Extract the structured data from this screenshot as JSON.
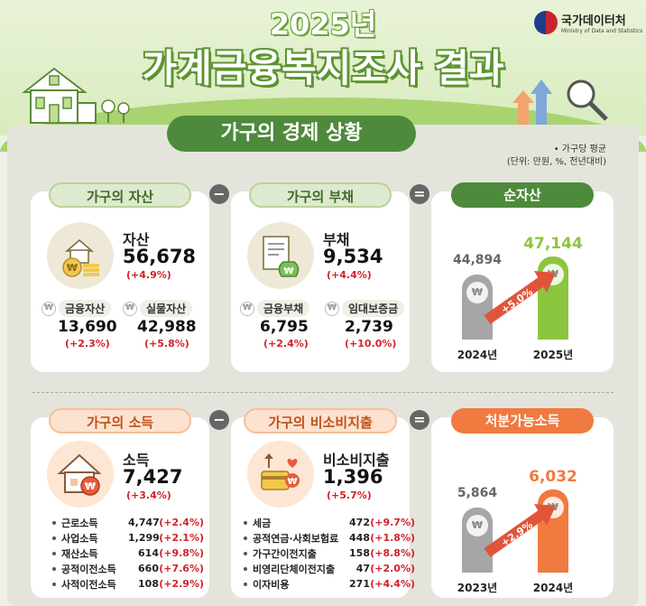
{
  "header": {
    "year": "2025년",
    "title": "가계금융복지조사 결과",
    "logo_ko": "국가데이터처",
    "logo_en": "Ministry of Data and Statistics"
  },
  "section": {
    "title": "가구의 경제 상황",
    "note1": "• 가구당 평균",
    "note2": "(단위: 만원, %, 전년대비)"
  },
  "assets": {
    "pill": "가구의 자산",
    "label": "자산",
    "value": "56,678",
    "change": "(+4.9%)",
    "sub": [
      {
        "label": "금융자산",
        "value": "13,690",
        "change": "(+2.3%)"
      },
      {
        "label": "실물자산",
        "value": "42,988",
        "change": "(+5.8%)"
      }
    ]
  },
  "debt": {
    "pill": "가구의 부채",
    "label": "부채",
    "value": "9,534",
    "change": "(+4.4%)",
    "sub": [
      {
        "label": "금융부채",
        "value": "6,795",
        "change": "(+2.4%)"
      },
      {
        "label": "임대보증금",
        "value": "2,739",
        "change": "(+10.0%)"
      }
    ]
  },
  "net": {
    "pill": "순자산",
    "growth": "+5.0%",
    "bars": [
      {
        "year": "2024년",
        "value": "44,894",
        "num": 44894,
        "color": "#a6a6a6"
      },
      {
        "year": "2025년",
        "value": "47,144",
        "num": 47144,
        "color": "#8cc63e"
      }
    ]
  },
  "income": {
    "pill": "가구의 소득",
    "label": "소득",
    "value": "7,427",
    "change": "(+3.4%)",
    "items": [
      {
        "name": "근로소득",
        "value": "4,747",
        "change": "(+2.4%)"
      },
      {
        "name": "사업소득",
        "value": "1,299",
        "change": "(+2.1%)"
      },
      {
        "name": "재산소득",
        "value": "614",
        "change": "(+9.8%)"
      },
      {
        "name": "공적이전소득",
        "value": "660",
        "change": "(+7.6%)"
      },
      {
        "name": "사적이전소득",
        "value": "108",
        "change": "(+2.9%)"
      }
    ]
  },
  "nonconsumption": {
    "pill": "가구의 비소비지출",
    "label": "비소비지출",
    "value": "1,396",
    "change": "(+5.7%)",
    "items": [
      {
        "name": "세금",
        "value": "472",
        "change": "(+9.7%)"
      },
      {
        "name": "공적연금·사회보험료",
        "value": "448",
        "change": "(+1.8%)"
      },
      {
        "name": "가구간이전지출",
        "value": "158",
        "change": "(+8.8%)"
      },
      {
        "name": "비영리단체이전지출",
        "value": "47",
        "change": "(+2.0%)"
      },
      {
        "name": "이자비용",
        "value": "271",
        "change": "(+4.4%)"
      }
    ]
  },
  "disposable": {
    "pill": "처분가능소득",
    "growth": "+2.9%",
    "bars": [
      {
        "year": "2023년",
        "value": "5,864",
        "num": 5864,
        "color": "#a6a6a6"
      },
      {
        "year": "2024년",
        "value": "6,032",
        "num": 6032,
        "color": "#f07a3f"
      }
    ]
  },
  "operators": {
    "minus": "−",
    "equals": "=",
    "won": "₩"
  }
}
